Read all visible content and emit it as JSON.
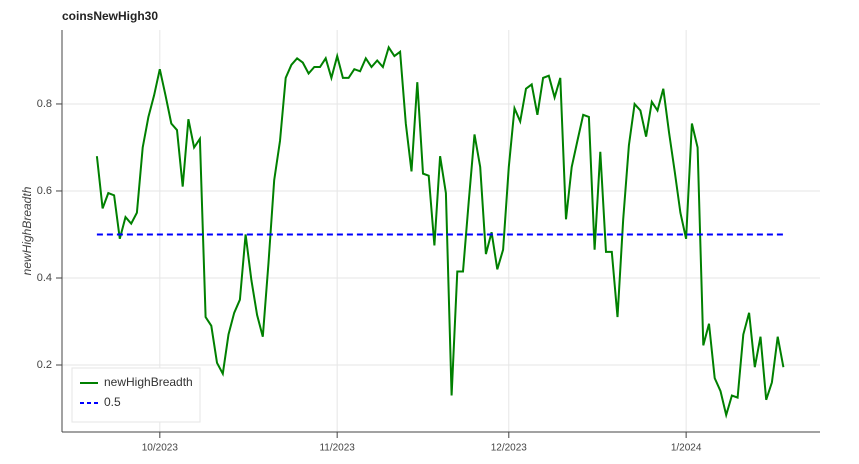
{
  "chart_data": {
    "type": "line",
    "title": "coinsNewHigh30",
    "ylabel": "newHighBreadth",
    "xlim": [
      -6.1,
      126.4
    ],
    "ylim": [
      0.046,
      0.97
    ],
    "xticks": [
      {
        "value": 11,
        "label": "10/2023"
      },
      {
        "value": 42,
        "label": "11/2023"
      },
      {
        "value": 72,
        "label": "12/2023"
      },
      {
        "value": 103,
        "label": "1/2024"
      }
    ],
    "yticks": [
      0.2,
      0.4,
      0.6,
      0.8
    ],
    "grid": true,
    "legend": "bottom-left",
    "series": [
      {
        "name": "newHighBreadth",
        "color": "#008000",
        "dash": false,
        "values": [
          0.68,
          0.56,
          0.595,
          0.59,
          0.49,
          0.54,
          0.525,
          0.55,
          0.7,
          0.77,
          0.82,
          0.88,
          0.82,
          0.755,
          0.74,
          0.61,
          0.765,
          0.7,
          0.72,
          0.31,
          0.29,
          0.205,
          0.18,
          0.27,
          0.32,
          0.35,
          0.5,
          0.395,
          0.315,
          0.265,
          0.435,
          0.625,
          0.715,
          0.86,
          0.89,
          0.905,
          0.895,
          0.87,
          0.885,
          0.885,
          0.905,
          0.86,
          0.91,
          0.86,
          0.86,
          0.88,
          0.875,
          0.905,
          0.885,
          0.9,
          0.885,
          0.93,
          0.91,
          0.92,
          0.755,
          0.645,
          0.85,
          0.64,
          0.635,
          0.475,
          0.68,
          0.595,
          0.13,
          0.415,
          0.415,
          0.575,
          0.73,
          0.655,
          0.455,
          0.505,
          0.42,
          0.465,
          0.655,
          0.79,
          0.76,
          0.835,
          0.845,
          0.775,
          0.86,
          0.865,
          0.815,
          0.86,
          0.535,
          0.655,
          0.715,
          0.775,
          0.77,
          0.465,
          0.69,
          0.46,
          0.46,
          0.31,
          0.535,
          0.705,
          0.8,
          0.785,
          0.725,
          0.805,
          0.785,
          0.835,
          0.735,
          0.645,
          0.55,
          0.49,
          0.755,
          0.7,
          0.245,
          0.295,
          0.17,
          0.14,
          0.085,
          0.13,
          0.125,
          0.27,
          0.32,
          0.195,
          0.265,
          0.12,
          0.16,
          0.265,
          0.195
        ]
      },
      {
        "name": "0.5",
        "color": "#0000ff",
        "dash": true,
        "values": [
          0.5,
          0.5,
          0.5,
          0.5,
          0.5,
          0.5,
          0.5,
          0.5,
          0.5,
          0.5,
          0.5,
          0.5,
          0.5,
          0.5,
          0.5,
          0.5,
          0.5,
          0.5,
          0.5,
          0.5,
          0.5,
          0.5,
          0.5,
          0.5,
          0.5,
          0.5,
          0.5,
          0.5,
          0.5,
          0.5,
          0.5,
          0.5,
          0.5,
          0.5,
          0.5,
          0.5,
          0.5,
          0.5,
          0.5,
          0.5,
          0.5,
          0.5,
          0.5,
          0.5,
          0.5,
          0.5,
          0.5,
          0.5,
          0.5,
          0.5,
          0.5,
          0.5,
          0.5,
          0.5,
          0.5,
          0.5,
          0.5,
          0.5,
          0.5,
          0.5,
          0.5,
          0.5,
          0.5,
          0.5,
          0.5,
          0.5,
          0.5,
          0.5,
          0.5,
          0.5,
          0.5,
          0.5,
          0.5,
          0.5,
          0.5,
          0.5,
          0.5,
          0.5,
          0.5,
          0.5,
          0.5,
          0.5,
          0.5,
          0.5,
          0.5,
          0.5,
          0.5,
          0.5,
          0.5,
          0.5,
          0.5,
          0.5,
          0.5,
          0.5,
          0.5,
          0.5,
          0.5,
          0.5,
          0.5,
          0.5,
          0.5,
          0.5,
          0.5,
          0.5,
          0.5,
          0.5,
          0.5,
          0.5,
          0.5,
          0.5,
          0.5,
          0.5,
          0.5,
          0.5,
          0.5,
          0.5,
          0.5,
          0.5,
          0.5,
          0.5,
          0.5
        ]
      }
    ]
  }
}
